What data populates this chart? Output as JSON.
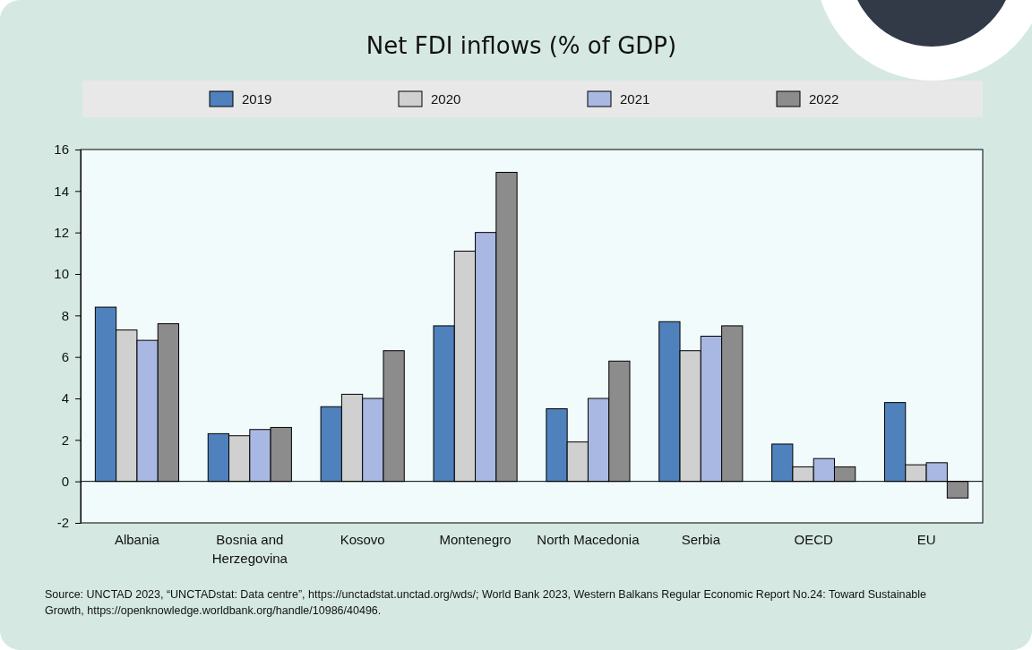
{
  "chart_data": {
    "type": "bar",
    "title": "Net FDI inflows (% of GDP)",
    "categories": [
      "Albania",
      "Bosnia and Herzegovina",
      "Kosovo",
      "Montenegro",
      "North Macedonia",
      "Serbia",
      "OECD",
      "EU"
    ],
    "series": [
      {
        "name": "2019",
        "color": "#4f81bd",
        "values": [
          8.4,
          2.3,
          3.6,
          7.5,
          3.5,
          7.7,
          1.8,
          3.8
        ]
      },
      {
        "name": "2020",
        "color": "#d0d0d0",
        "values": [
          7.3,
          2.2,
          4.2,
          11.1,
          1.9,
          6.3,
          0.7,
          0.8
        ]
      },
      {
        "name": "2021",
        "color": "#a9b8e3",
        "values": [
          6.8,
          2.5,
          4.0,
          12.0,
          4.0,
          7.0,
          1.1,
          0.9
        ]
      },
      {
        "name": "2022",
        "color": "#8c8c8c",
        "values": [
          7.6,
          2.6,
          6.3,
          14.9,
          5.8,
          7.5,
          0.7,
          -0.8
        ]
      }
    ],
    "ylim": [
      -2,
      16
    ],
    "yticks": [
      -2,
      0,
      2,
      4,
      6,
      8,
      10,
      12,
      14,
      16
    ],
    "grid": false,
    "legend": "top",
    "ref_lines": [
      {
        "axis": "y",
        "value": 0,
        "color": "#000000"
      }
    ],
    "annotations": [
      "Source: UNCTAD 2023, “UNCTADstat: Data centre”, https://unctadstat.unctad.org/wds/;  World Bank 2023, Western Balkans Regular Economic Report No.24: Toward Sustainable Growth, https://openknowledge.worldbank.org/handle/10986/40496."
    ]
  }
}
